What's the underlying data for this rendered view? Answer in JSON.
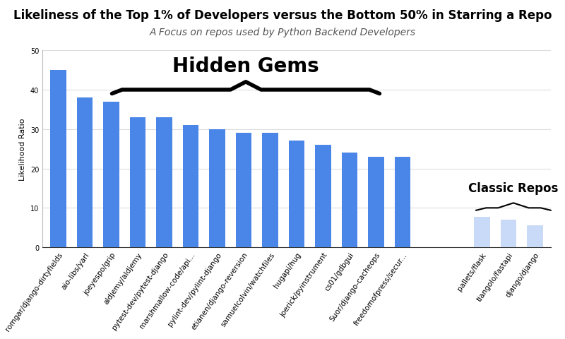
{
  "chart_data": {
    "type": "bar",
    "title": "Likeliness of the Top 1% of Developers versus the Bottom 50% in Starring a Repo",
    "subtitle": "A Focus on repos used by Python Backend Developers",
    "y_label": "Likelihood Ratio",
    "categories": [
      "romgar/django-dirtyfields",
      "aio-libs/yarl",
      "joeyespo/grip",
      "aldjemy/aldjemy",
      "pytest-dev/pytest-django",
      "marshmallow-code/api...",
      "pylint-dev/pylint-django",
      "etianen/django-reversion",
      "samuelcolvin/watchfiles",
      "hugapi/hug",
      "joerick/pyinstrument",
      "cs01/gdbgui",
      "Suor/django-cacheops",
      "freedomofpress/secur...",
      null,
      null,
      "pallets/flask",
      "tiangolo/fastapi",
      "django/django"
    ],
    "values": [
      45,
      38,
      37,
      33,
      33,
      31,
      30,
      29,
      29,
      27,
      26,
      24,
      23,
      23,
      null,
      null,
      7.8,
      7,
      5.6
    ],
    "colors": [
      "#4a86e8",
      "#4a86e8",
      "#4a86e8",
      "#4a86e8",
      "#4a86e8",
      "#4a86e8",
      "#4a86e8",
      "#4a86e8",
      "#4a86e8",
      "#4a86e8",
      "#4a86e8",
      "#4a86e8",
      "#4a86e8",
      "#4a86e8",
      null,
      null,
      "#c9daf8",
      "#c9daf8",
      "#c9daf8"
    ],
    "annotations": [
      "Hidden Gems",
      "Classic Repos"
    ],
    "ylim": [
      0,
      50
    ],
    "yticks": [
      0,
      10,
      20,
      30,
      40,
      50
    ],
    "grid": true
  }
}
